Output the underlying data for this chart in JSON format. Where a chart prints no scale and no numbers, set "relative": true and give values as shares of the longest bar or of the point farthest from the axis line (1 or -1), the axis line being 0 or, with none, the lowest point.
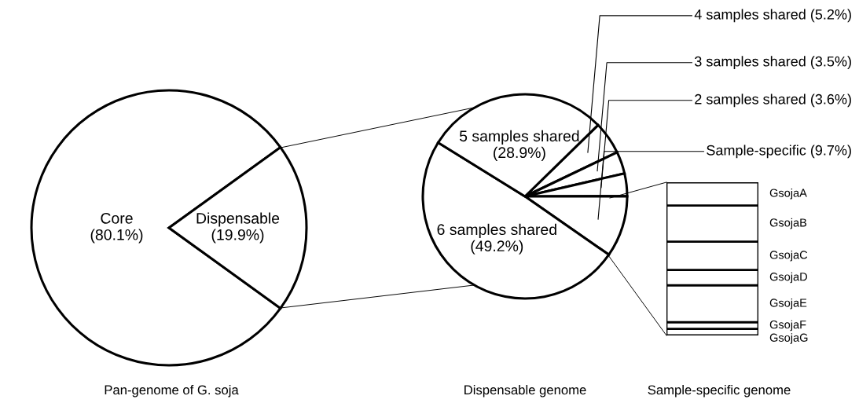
{
  "chart_data": [
    {
      "type": "pie",
      "title": "Pan-genome of G. soja",
      "categories": [
        "Core",
        "Dispensable"
      ],
      "values": [
        80.1,
        19.9
      ],
      "value_labels": [
        "(80.1%)",
        "(19.9%)"
      ],
      "colors": [
        "#ffffff",
        "#ffffff"
      ]
    },
    {
      "type": "pie",
      "title": "Dispensable genome",
      "categories": [
        "4 samples shared",
        "3 samples shared",
        "2 samples shared",
        "Sample-specific",
        "6 samples shared",
        "5 samples shared"
      ],
      "values": [
        5.2,
        3.5,
        3.6,
        9.7,
        49.2,
        28.9
      ],
      "value_labels": [
        "(5.2%)",
        "(3.5%)",
        "(3.6%)",
        "(9.7%)",
        "(49.2%)",
        "(28.9%)"
      ],
      "colors": [
        "#ffffff",
        "#ffffff",
        "#ffffff",
        "#ffffff",
        "#ffffff",
        "#ffffff"
      ]
    },
    {
      "type": "bar",
      "title": "Sample-specific genome",
      "stacked": true,
      "relative": true,
      "categories": [
        null
      ],
      "series": [
        {
          "name": "GsojaG",
          "color": "#ffffff",
          "values": [
            0.043
          ]
        },
        {
          "name": "GsojaF",
          "color": "#ffffff",
          "values": [
            0.043
          ]
        },
        {
          "name": "GsojaE",
          "color": "#ffffff",
          "values": [
            0.241
          ]
        },
        {
          "name": "GsojaD",
          "color": "#ffffff",
          "values": [
            0.1
          ]
        },
        {
          "name": "GsojaC",
          "color": "#ffffff",
          "values": [
            0.185
          ]
        },
        {
          "name": "GsojaB",
          "color": "#ffffff",
          "values": [
            0.236
          ]
        },
        {
          "name": "GsojaA",
          "color": "#ffffff",
          "values": [
            0.152
          ]
        }
      ]
    }
  ]
}
